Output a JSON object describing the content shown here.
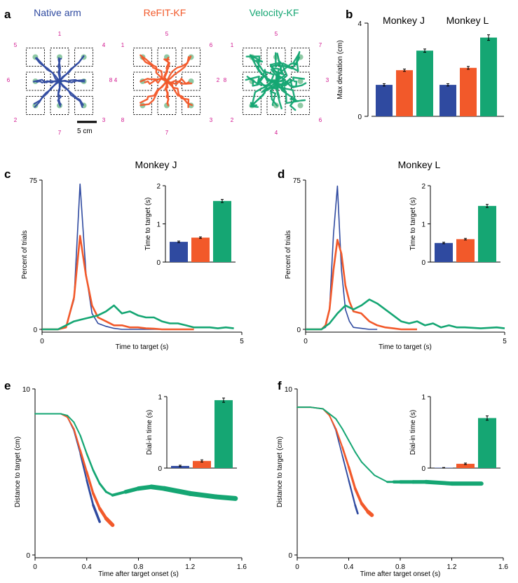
{
  "colors": {
    "native": "#2f4aa0",
    "refit": "#f2592a",
    "velocity": "#15a673",
    "target_num": "#d0108c",
    "target_dot": "#8fc9a4"
  },
  "panel_labels": {
    "a": "a",
    "b": "b",
    "c": "c",
    "d": "d",
    "e": "e",
    "f": "f"
  },
  "panel_a": {
    "titles": [
      "Native arm",
      "ReFIT-KF",
      "Velocity-KF"
    ],
    "target_numbers": [
      [
        "1",
        "4",
        "8",
        "3",
        "7",
        "2",
        "6",
        "5"
      ],
      [
        "5",
        "6",
        "2",
        "3",
        "7",
        "8",
        "4",
        "1"
      ],
      [
        "5",
        "7",
        "3",
        "6",
        "4",
        "2",
        "8",
        "1"
      ]
    ],
    "scale_bar": "5 cm"
  },
  "chart_data": [
    {
      "id": "b",
      "type": "bar",
      "ylabel": "Max deviation (cm)",
      "ylim": [
        0,
        4
      ],
      "yticks": [
        "0",
        "4"
      ],
      "groups": [
        {
          "title": "Monkey J",
          "values": [
            1.35,
            1.98,
            2.82
          ],
          "errors": [
            0.05,
            0.05,
            0.07
          ]
        },
        {
          "title": "Monkey L",
          "values": [
            1.35,
            2.08,
            3.38
          ],
          "errors": [
            0.05,
            0.06,
            0.12
          ]
        }
      ]
    },
    {
      "id": "c",
      "type": "line",
      "title": "Monkey J",
      "xlabel": "Time to target (s)",
      "ylabel": "Percent of trials",
      "xlim": [
        0,
        5
      ],
      "ylim": [
        0,
        75
      ],
      "xticks": [
        "0",
        "5"
      ],
      "yticks": [
        "0",
        "75"
      ],
      "series": [
        {
          "name": "Native arm",
          "width": 1.6,
          "x": [
            0,
            0.2,
            0.4,
            0.6,
            0.8,
            0.95,
            1.1,
            1.25,
            1.4,
            1.6,
            1.8,
            2,
            2.4,
            2.8,
            3.4
          ],
          "y": [
            0,
            0,
            0,
            1,
            15,
            73,
            28,
            8,
            3,
            1.5,
            0.5,
            0,
            0,
            0,
            0
          ]
        },
        {
          "name": "ReFIT-KF",
          "width": 2.6,
          "x": [
            0,
            0.2,
            0.4,
            0.6,
            0.8,
            0.95,
            1.1,
            1.25,
            1.4,
            1.6,
            1.8,
            2,
            2.2,
            2.4,
            2.6,
            2.8,
            3,
            3.4,
            3.8
          ],
          "y": [
            0,
            0,
            0,
            1,
            16,
            47,
            27,
            12,
            6,
            4,
            2,
            2,
            1,
            1,
            0.5,
            0.3,
            0,
            0,
            0
          ]
        },
        {
          "name": "Velocity-KF",
          "width": 2.6,
          "x": [
            0,
            0.2,
            0.4,
            0.6,
            0.8,
            1.0,
            1.2,
            1.4,
            1.6,
            1.8,
            2.0,
            2.2,
            2.4,
            2.6,
            2.8,
            3.0,
            3.2,
            3.4,
            3.6,
            3.8,
            4.0,
            4.2,
            4.4,
            4.6,
            4.8
          ],
          "y": [
            0,
            0,
            0,
            2,
            4,
            5,
            6,
            7,
            9,
            12,
            8,
            9,
            7,
            6,
            6,
            4,
            3,
            3,
            2,
            1,
            1,
            1,
            0.5,
            1,
            0.5
          ]
        }
      ],
      "inset": {
        "ylabel": "Time to target (s)",
        "ylim": [
          0,
          2
        ],
        "yticks": [
          "0",
          "1",
          "2"
        ],
        "values": [
          0.53,
          0.64,
          1.6
        ],
        "errors": [
          0.02,
          0.02,
          0.04
        ]
      }
    },
    {
      "id": "d",
      "type": "line",
      "title": "Monkey L",
      "xlabel": "Time to target (s)",
      "ylabel": "Percent of trials",
      "xlim": [
        0,
        5
      ],
      "ylim": [
        0,
        75
      ],
      "xticks": [
        "0",
        "5"
      ],
      "yticks": [
        "0",
        "75"
      ],
      "series": [
        {
          "name": "Native arm",
          "width": 1.6,
          "x": [
            0,
            0.2,
            0.4,
            0.5,
            0.6,
            0.7,
            0.8,
            0.9,
            1.0,
            1.1,
            1.2,
            1.4,
            1.6,
            1.8
          ],
          "y": [
            0,
            0,
            0,
            1,
            10,
            48,
            72,
            30,
            10,
            4,
            1,
            0.5,
            0,
            0
          ]
        },
        {
          "name": "ReFIT-KF",
          "width": 2.6,
          "x": [
            0,
            0.2,
            0.4,
            0.5,
            0.6,
            0.7,
            0.8,
            0.9,
            1.0,
            1.1,
            1.2,
            1.4,
            1.6,
            1.8,
            2.0,
            2.2,
            2.4,
            2.6,
            2.8
          ],
          "y": [
            0,
            0,
            0,
            2,
            10,
            30,
            45,
            38,
            22,
            14,
            9,
            8,
            4,
            2,
            1,
            0.5,
            0,
            0,
            0
          ]
        },
        {
          "name": "Velocity-KF",
          "width": 2.6,
          "x": [
            0,
            0.2,
            0.4,
            0.6,
            0.8,
            1.0,
            1.2,
            1.4,
            1.6,
            1.8,
            2.0,
            2.2,
            2.4,
            2.6,
            2.8,
            3.0,
            3.2,
            3.4,
            3.6,
            3.8,
            4.0,
            4.4,
            4.8,
            5.0
          ],
          "y": [
            0,
            0,
            0,
            3,
            8,
            12,
            10,
            12,
            15,
            13,
            10,
            7,
            4,
            3,
            4,
            2,
            3,
            1,
            2,
            1,
            1,
            0.5,
            1,
            0.5
          ]
        }
      ],
      "inset": {
        "ylabel": "Time to target (s)",
        "ylim": [
          0,
          2
        ],
        "yticks": [
          "0",
          "1",
          "2"
        ],
        "values": [
          0.5,
          0.6,
          1.47
        ],
        "errors": [
          0.02,
          0.02,
          0.04
        ]
      }
    },
    {
      "id": "e",
      "type": "line",
      "xlabel": "Time after target onset (s)",
      "ylabel": "Distance to target (cm)",
      "xlim": [
        0,
        1.6
      ],
      "ylim": [
        0,
        10
      ],
      "xticks": [
        "0",
        "0.4",
        "0.8",
        "1.2",
        "1.6"
      ],
      "yticks": [
        "0",
        "10"
      ],
      "series": [
        {
          "name": "Native arm",
          "x": [
            0,
            0.1,
            0.2,
            0.25,
            0.3,
            0.35,
            0.4,
            0.45,
            0.5
          ],
          "y": [
            8.5,
            8.5,
            8.5,
            8.3,
            7.5,
            6.1,
            4.5,
            3,
            2
          ],
          "w": [
            1.5,
            1.5,
            1.5,
            1.5,
            1.5,
            2,
            2.5,
            3,
            4
          ]
        },
        {
          "name": "ReFIT-KF",
          "x": [
            0,
            0.1,
            0.2,
            0.25,
            0.3,
            0.35,
            0.4,
            0.45,
            0.5,
            0.55,
            0.6
          ],
          "y": [
            8.5,
            8.5,
            8.5,
            8.3,
            7.6,
            6.3,
            5,
            3.7,
            2.8,
            2.2,
            1.8
          ],
          "w": [
            2,
            2,
            2,
            2,
            2,
            2.5,
            3,
            3.5,
            4,
            5,
            6
          ]
        },
        {
          "name": "Velocity-KF",
          "x": [
            0,
            0.1,
            0.2,
            0.25,
            0.3,
            0.35,
            0.4,
            0.45,
            0.5,
            0.55,
            0.6,
            0.7,
            0.8,
            0.9,
            1.0,
            1.2,
            1.4,
            1.55
          ],
          "y": [
            8.5,
            8.5,
            8.5,
            8.4,
            8.0,
            7.2,
            6.1,
            5.1,
            4.3,
            3.8,
            3.6,
            3.8,
            4.0,
            4.1,
            4.0,
            3.7,
            3.5,
            3.4
          ],
          "w": [
            2,
            2,
            2,
            2,
            2,
            2,
            2.5,
            2.5,
            3,
            3,
            3,
            5,
            6,
            6.5,
            7,
            7,
            7,
            7
          ]
        }
      ],
      "inset": {
        "ylabel": "Dial-in time (s)",
        "ylim": [
          0,
          1
        ],
        "yticks": [
          "0",
          "1"
        ],
        "values": [
          0.03,
          0.1,
          0.95
        ],
        "errors": [
          0.01,
          0.015,
          0.03
        ]
      }
    },
    {
      "id": "f",
      "type": "line",
      "xlabel": "Time after target onset (s)",
      "ylabel": "Distance to target (cm)",
      "xlim": [
        0,
        1.6
      ],
      "ylim": [
        0,
        10
      ],
      "xticks": [
        "0",
        "0.4",
        "0.8",
        "1.2",
        "1.6"
      ],
      "yticks": [
        "0",
        "10"
      ],
      "series": [
        {
          "name": "Native arm",
          "x": [
            0,
            0.1,
            0.2,
            0.25,
            0.3,
            0.35,
            0.4,
            0.45,
            0.47
          ],
          "y": [
            8.9,
            8.9,
            8.8,
            8.4,
            7.5,
            6.0,
            4.5,
            3.0,
            2.5
          ],
          "w": [
            1.5,
            1.5,
            1.5,
            1.5,
            1.5,
            1.8,
            2,
            2.5,
            3
          ]
        },
        {
          "name": "ReFIT-KF",
          "x": [
            0,
            0.1,
            0.2,
            0.25,
            0.3,
            0.35,
            0.4,
            0.45,
            0.5,
            0.55,
            0.58
          ],
          "y": [
            8.9,
            8.9,
            8.8,
            8.4,
            7.6,
            6.5,
            5.3,
            4.0,
            3.1,
            2.6,
            2.4
          ],
          "w": [
            2,
            2,
            2,
            2,
            2,
            2.5,
            3,
            3.5,
            4,
            5,
            6
          ]
        },
        {
          "name": "Velocity-KF",
          "x": [
            0,
            0.1,
            0.2,
            0.3,
            0.35,
            0.4,
            0.45,
            0.5,
            0.6,
            0.7,
            0.75,
            0.8,
            0.9,
            1.0,
            1.2,
            1.43
          ],
          "y": [
            8.9,
            8.9,
            8.8,
            8.2,
            7.6,
            6.9,
            6.2,
            5.6,
            4.8,
            4.4,
            4.4,
            4.4,
            4.4,
            4.4,
            4.3,
            4.3
          ],
          "w": [
            2,
            2,
            2,
            2,
            2,
            2,
            2,
            2,
            2,
            2,
            4,
            5,
            5,
            5.5,
            6,
            6
          ]
        }
      ],
      "inset": {
        "ylabel": "Dial-in time (s)",
        "ylim": [
          0,
          1
        ],
        "yticks": [
          "0",
          "1"
        ],
        "values": [
          0.005,
          0.06,
          0.7
        ],
        "errors": [
          0.003,
          0.01,
          0.03
        ]
      }
    }
  ]
}
